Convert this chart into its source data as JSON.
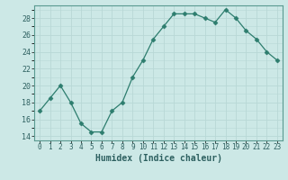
{
  "x": [
    0,
    1,
    2,
    3,
    4,
    5,
    6,
    7,
    8,
    9,
    10,
    11,
    12,
    13,
    14,
    15,
    16,
    17,
    18,
    19,
    20,
    21,
    22,
    23
  ],
  "y": [
    17,
    18.5,
    20,
    18,
    15.5,
    14.5,
    14.5,
    17,
    18,
    21,
    23,
    25.5,
    27,
    28.5,
    28.5,
    28.5,
    28,
    27.5,
    29,
    28,
    26.5,
    25.5,
    24,
    23
  ],
  "line_color": "#2d7d6e",
  "marker": "D",
  "marker_size": 2.5,
  "bg_color": "#cce8e6",
  "grid_color_major": "#b8d8d6",
  "grid_color_minor": "#d4ecea",
  "xlabel": "Humidex (Indice chaleur)",
  "ylabel": "",
  "ylim": [
    13.5,
    29.5
  ],
  "yticks": [
    14,
    16,
    18,
    20,
    22,
    24,
    26,
    28
  ],
  "xlim": [
    -0.5,
    23.5
  ],
  "xticks": [
    0,
    1,
    2,
    3,
    4,
    5,
    6,
    7,
    8,
    9,
    10,
    11,
    12,
    13,
    14,
    15,
    16,
    17,
    18,
    19,
    20,
    21,
    22,
    23
  ],
  "tick_fontsize": 5.5,
  "xlabel_fontsize": 7,
  "spine_color": "#5a9a90",
  "tick_color": "#2d6060"
}
